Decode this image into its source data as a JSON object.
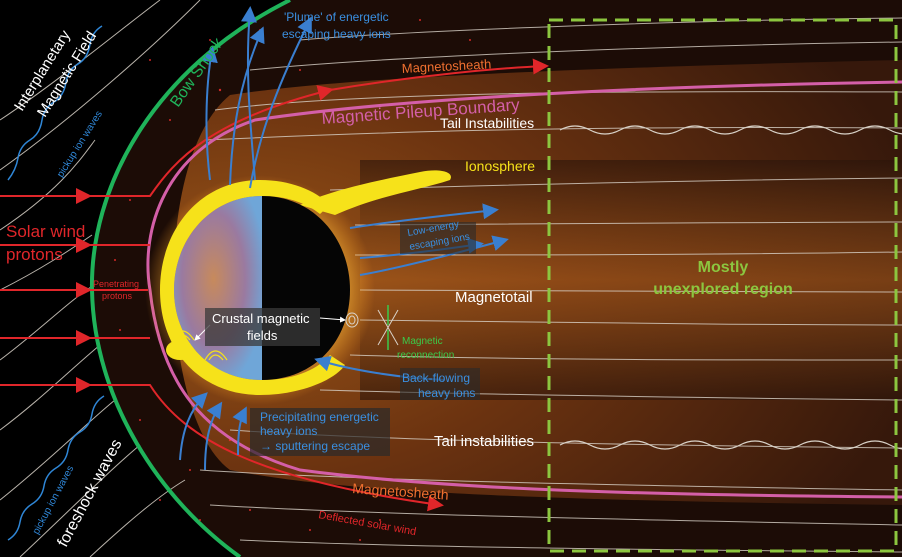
{
  "colors": {
    "bow_shock": "#1fb35a",
    "pileup": "#d45fa8",
    "ionosphere": "#f6e21a",
    "escape_arrow": "#3a7fd0",
    "wind_arrow": "#e0262a",
    "unexplored": "#8cc63f",
    "field_line": "#d9d2c8",
    "wave_line": "#2f86d6",
    "label_white": "#ffffff"
  },
  "labels": {
    "imf_line1": "Interplanetary",
    "imf_line2": "Magnetic Field",
    "pickup_top": "pickup ion waves",
    "pickup_bottom": "pickup ion waves",
    "foreshock": "foreshock waves",
    "bow_shock": "Bow Shock",
    "plume_line1": "'Plume' of energetic",
    "plume_line2": "escaping heavy ions",
    "magnetosheath_top": "Magnetosheath",
    "pileup": "Magnetic Pileup  Boundary",
    "tail_inst_top": "Tail Instabilities",
    "ionosphere": "Ionosphere",
    "solar_wind_line1": "Solar wind",
    "solar_wind_line2": "protons",
    "penetrating_line1": "Penetrating",
    "penetrating_line2": "protons",
    "low_energy_line1": "Low-energy",
    "low_energy_line2": "escaping ions",
    "crustal_line1": "Crustal magnetic",
    "crustal_line2": "fields",
    "magnetotail": "Magnetotail",
    "reconnection_line1": "Magnetic",
    "reconnection_line2": "reconnection",
    "backflow_line1": "Back-flowing",
    "backflow_line2": "heavy ions",
    "precip_line1": "Precipitating energetic",
    "precip_line2": "heavy ions",
    "precip_line3": "→ sputtering escape",
    "tail_inst_bottom": "Tail instabilities",
    "magnetosheath_bottom": "Magnetosheath",
    "deflected": "Deflected solar wind",
    "unexplored_line1": "Mostly",
    "unexplored_line2": "unexplored region"
  }
}
